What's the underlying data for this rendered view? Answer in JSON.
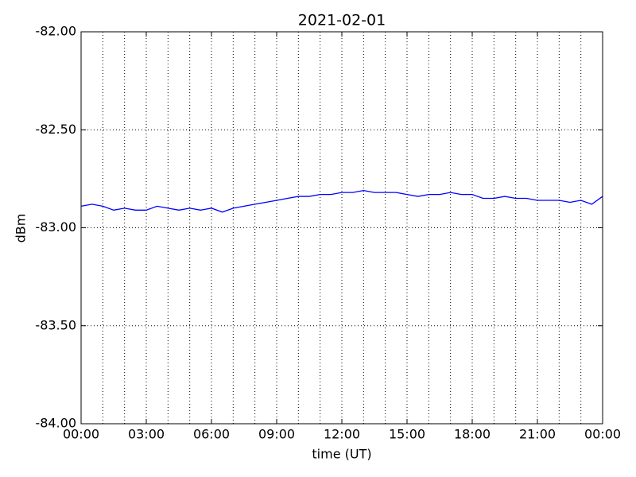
{
  "chart_data": {
    "type": "line",
    "title": "2021-02-01",
    "x_label": "time (UT)",
    "y_label": "dBm",
    "x": [
      0,
      0.5,
      1,
      1.5,
      2,
      2.5,
      3,
      3.5,
      4,
      4.5,
      5,
      5.5,
      6,
      6.5,
      7,
      7.5,
      8,
      8.5,
      9,
      9.5,
      10,
      10.5,
      11,
      11.5,
      12,
      12.5,
      13,
      13.5,
      14,
      14.5,
      15,
      15.5,
      16,
      16.5,
      17,
      17.5,
      18,
      18.5,
      19,
      19.5,
      20,
      20.5,
      21,
      21.5,
      22,
      22.5,
      23,
      23.5,
      24
    ],
    "values": [
      -82.89,
      -82.88,
      -82.89,
      -82.91,
      -82.9,
      -82.91,
      -82.91,
      -82.89,
      -82.9,
      -82.91,
      -82.9,
      -82.91,
      -82.9,
      -82.92,
      -82.9,
      -82.89,
      -82.88,
      -82.87,
      -82.86,
      -82.85,
      -82.84,
      -82.84,
      -82.83,
      -82.83,
      -82.82,
      -82.82,
      -82.81,
      -82.82,
      -82.82,
      -82.82,
      -82.83,
      -82.84,
      -82.83,
      -82.83,
      -82.82,
      -82.83,
      -82.83,
      -82.85,
      -82.85,
      -82.84,
      -82.85,
      -82.85,
      -82.86,
      -82.86,
      -82.86,
      -82.87,
      -82.86,
      -82.88,
      -82.84
    ],
    "color": "#0000ff",
    "xlim": [
      0,
      24
    ],
    "xticks": [
      {
        "value": 0,
        "label": "00:00"
      },
      {
        "value": 3,
        "label": "03:00"
      },
      {
        "value": 6,
        "label": "06:00"
      },
      {
        "value": 9,
        "label": "09:00"
      },
      {
        "value": 12,
        "label": "12:00"
      },
      {
        "value": 15,
        "label": "15:00"
      },
      {
        "value": 18,
        "label": "18:00"
      },
      {
        "value": 21,
        "label": "21:00"
      },
      {
        "value": 24,
        "label": "00:00"
      }
    ],
    "x_minor_ticks": [
      0,
      1,
      2,
      3,
      4,
      5,
      6,
      7,
      8,
      9,
      10,
      11,
      12,
      13,
      14,
      15,
      16,
      17,
      18,
      19,
      20,
      21,
      22,
      23,
      24
    ],
    "ylim": [
      -84,
      -82
    ],
    "yticks": [
      {
        "value": -84,
        "label": "-84.00"
      },
      {
        "value": -83.5,
        "label": "-83.50"
      },
      {
        "value": -83,
        "label": "-83.00"
      },
      {
        "value": -82.5,
        "label": "-82.50"
      },
      {
        "value": -82,
        "label": "-82.00"
      }
    ],
    "grid": true
  }
}
